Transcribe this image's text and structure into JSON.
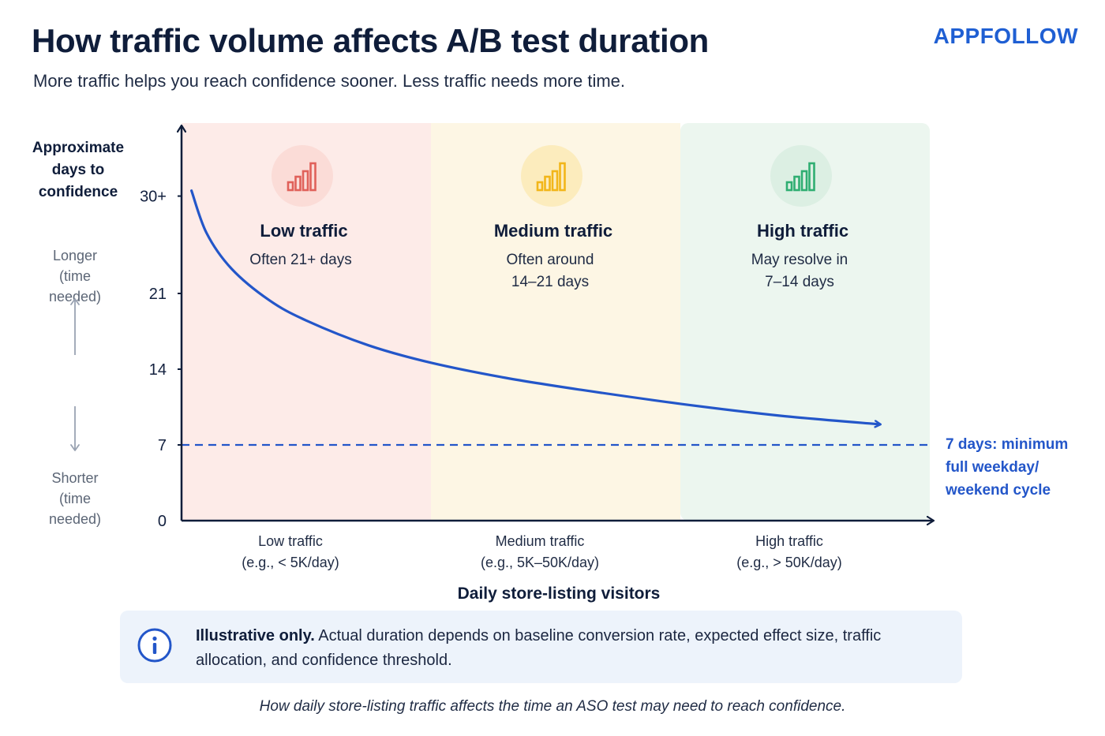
{
  "header": {
    "title": "How traffic volume affects A/B test duration",
    "subtitle": "More traffic helps you reach confidence sooner. Less traffic needs more time.",
    "brand": "APPFOLLOW"
  },
  "chart_data": {
    "type": "line",
    "ylabel": "Approximate days to confidence",
    "y_axis_direction": {
      "top_label": "Longer (time needed)",
      "bottom_label": "Shorter (time needed)"
    },
    "yticks": [
      {
        "value": 0,
        "label": "0"
      },
      {
        "value": 7,
        "label": "7"
      },
      {
        "value": 14,
        "label": "14"
      },
      {
        "value": 21,
        "label": "21"
      },
      {
        "value": 30,
        "label": "30+"
      }
    ],
    "ylim": [
      0,
      35
    ],
    "xlabel": "Daily store-listing visitors",
    "xlim": [
      0,
      3
    ],
    "x_categories": [
      {
        "name": "Low traffic",
        "range": "(e.g., < 5K/day)"
      },
      {
        "name": "Medium traffic",
        "range": "(e.g., 5K–50K/day)"
      },
      {
        "name": "High traffic",
        "range": "(e.g., > 50K/day)"
      }
    ],
    "zones": [
      {
        "title": "Low traffic",
        "desc": "Often 21+ days",
        "color": "#fdebe8",
        "icon_color": "#e0615a",
        "icon_bg": "#fbdcd7"
      },
      {
        "title": "Medium traffic",
        "desc": "Often around 14–21 days",
        "color": "#fdf6e4",
        "icon_color": "#f2b619",
        "icon_bg": "#fcecbd"
      },
      {
        "title": "High traffic",
        "desc": "May resolve in 7–14 days",
        "color": "#ecf6ef",
        "icon_color": "#2fae72",
        "icon_bg": "#dcefe3"
      }
    ],
    "series": [
      {
        "color": "#2356c9",
        "x": [
          0.04,
          0.1,
          0.2,
          0.35,
          0.5,
          0.75,
          1.0,
          1.3,
          1.6,
          2.0,
          2.4,
          2.8
        ],
        "y": [
          30.5,
          26.6,
          23.3,
          20.4,
          18.5,
          16.2,
          14.6,
          13.2,
          12.1,
          10.8,
          9.7,
          8.9
        ]
      }
    ],
    "reference_line": {
      "y": 7,
      "color": "#2356c9",
      "label": "7 days: minimum full weekday/ weekend cycle",
      "label_lines": [
        "7 days: minimum",
        "full weekday/",
        "weekend cycle"
      ]
    },
    "grid": false
  },
  "note": {
    "bold": "Illustrative only.",
    "text": " Actual duration depends on baseline conversion rate, expected effect size, traffic allocation, and confidence threshold."
  },
  "caption": "How daily store-listing traffic affects the time an ASO test may need to reach confidence.",
  "icons": {
    "zone_icon": "bar-chart-icon",
    "note_icon": "info-icon"
  }
}
